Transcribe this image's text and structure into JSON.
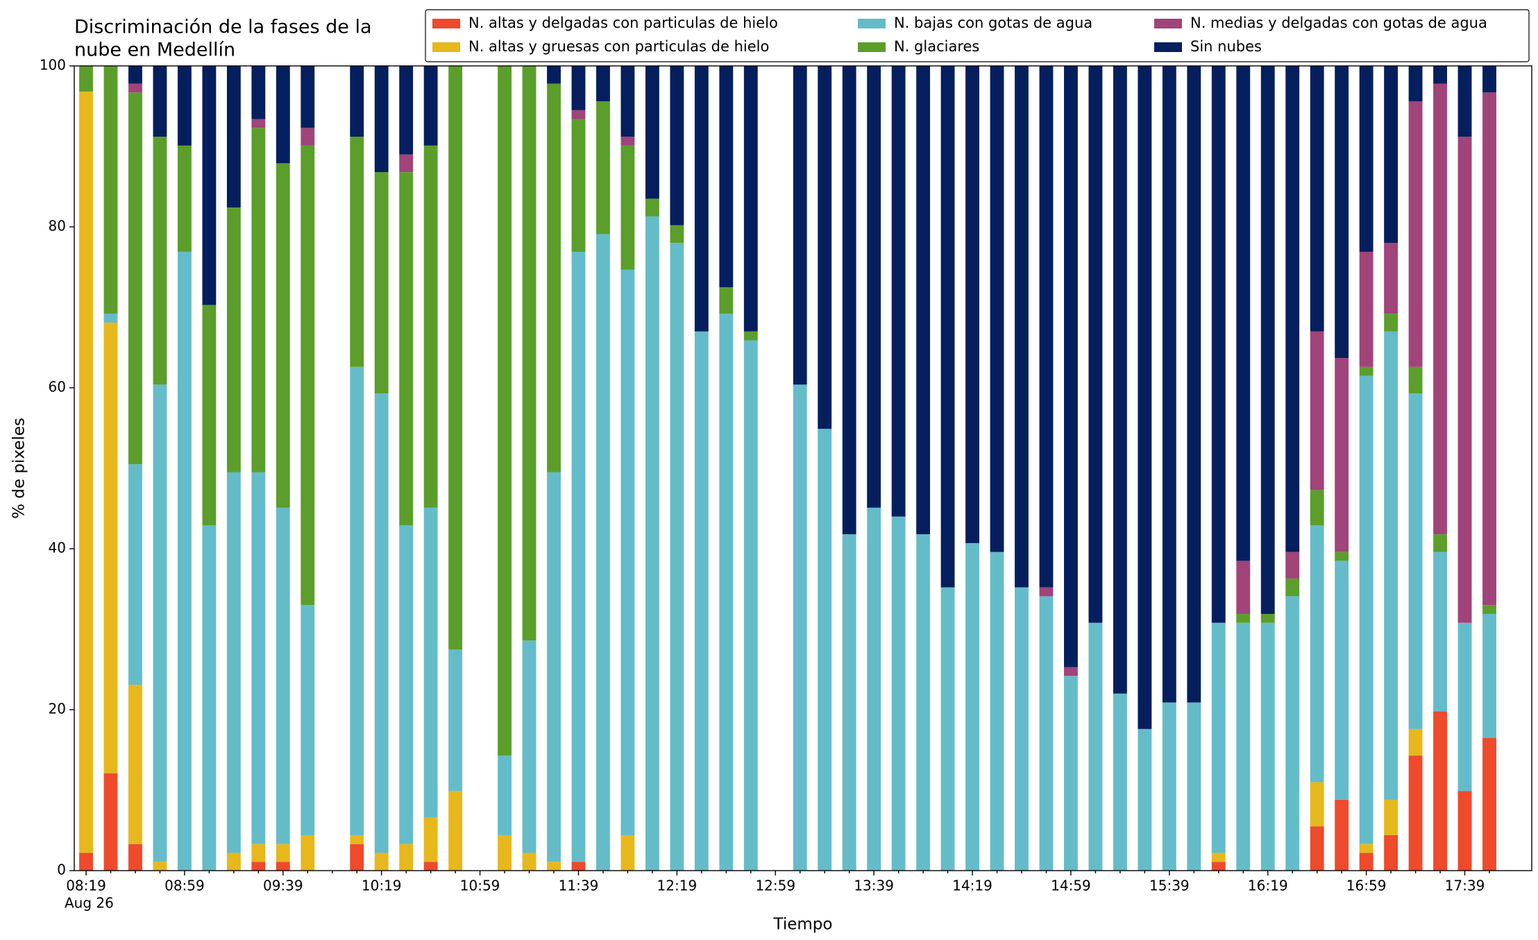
{
  "chart_data": {
    "type": "stacked_bar",
    "title": [
      "Discriminación de la fases de la",
      "nube en Medellín"
    ],
    "xlabel": "Tiempo",
    "ylabel": "% de pixeles",
    "date_label": "Aug 26",
    "categories": [
      "08:19",
      null,
      null,
      null,
      "08:59",
      null,
      null,
      null,
      "09:39",
      null,
      null,
      null,
      "10:19",
      null,
      null,
      null,
      "10:59",
      null,
      null,
      null,
      "11:39",
      null,
      null,
      null,
      "12:19",
      null,
      null,
      null,
      "12:59",
      null,
      null,
      null,
      "13:39",
      null,
      null,
      null,
      "14:19",
      null,
      null,
      null,
      "14:59",
      null,
      null,
      null,
      "15:39",
      null,
      null,
      null,
      "16:19",
      null,
      null,
      null,
      "16:59",
      null,
      null,
      null,
      "17:39",
      null
    ],
    "ylim": [
      0,
      100
    ],
    "yticks": [
      0,
      20,
      40,
      60,
      80,
      100
    ],
    "legend": "top",
    "series": [
      {
        "name": "N. altas y delgadas con particulas de hielo",
        "color": "#ee4a2b",
        "values": [
          2.2,
          12.1,
          3.3,
          0,
          0,
          0,
          0,
          1.1,
          1.1,
          0,
          null,
          3.3,
          0,
          0,
          1.1,
          0,
          null,
          0,
          0,
          0,
          1.1,
          0,
          0,
          0,
          0,
          0,
          0,
          0,
          null,
          0,
          0,
          0,
          0,
          0,
          0,
          0,
          0,
          0,
          0,
          0,
          0,
          0,
          0,
          0,
          0,
          0,
          1.1,
          0,
          0,
          0,
          5.5,
          8.8,
          2.2,
          4.4,
          14.3,
          19.8,
          9.9,
          16.5
        ]
      },
      {
        "name": "N. altas y gruesas con particulas de hielo",
        "color": "#e6b81c",
        "values": [
          94.6,
          56,
          19.8,
          1.1,
          0,
          0,
          2.2,
          2.2,
          2.2,
          4.4,
          null,
          1.1,
          2.2,
          3.3,
          5.5,
          9.9,
          null,
          4.4,
          2.2,
          1.1,
          0,
          0,
          4.4,
          0,
          0,
          0,
          0,
          0,
          null,
          0,
          0,
          0,
          0,
          0,
          0,
          0,
          0,
          0,
          0,
          0,
          0,
          0,
          0,
          0,
          0,
          0,
          1.1,
          0,
          0,
          0,
          5.5,
          0,
          1.1,
          4.4,
          3.3,
          0,
          0,
          0
        ]
      },
      {
        "name": "N. bajas con gotas de agua",
        "color": "#65bcc9",
        "values": [
          0,
          1.1,
          27.4,
          59.3,
          76.9,
          42.9,
          47.3,
          46.2,
          41.8,
          28.6,
          null,
          58.2,
          57.1,
          39.6,
          38.5,
          17.6,
          null,
          9.9,
          26.4,
          48.4,
          75.8,
          79.1,
          70.3,
          81.3,
          78,
          67,
          69.2,
          65.9,
          null,
          60.4,
          54.9,
          41.8,
          45.1,
          44,
          41.8,
          35.2,
          40.7,
          39.6,
          35.2,
          34.1,
          24.2,
          30.8,
          22,
          17.6,
          20.9,
          20.9,
          28.6,
          30.8,
          30.8,
          34.1,
          31.9,
          29.7,
          58.2,
          58.2,
          41.7,
          19.8,
          20.9,
          15.4
        ]
      },
      {
        "name": "N. glaciares",
        "color": "#5b9e2b",
        "values": [
          3.2,
          30.8,
          46.2,
          30.8,
          13.2,
          27.4,
          32.9,
          42.8,
          42.8,
          57.1,
          null,
          28.6,
          27.5,
          43.9,
          45,
          72.5,
          null,
          85.7,
          71.4,
          48.3,
          16.5,
          16.5,
          15.4,
          2.2,
          2.2,
          0,
          3.3,
          1.1,
          null,
          0,
          0,
          0,
          0,
          0,
          0,
          0,
          0,
          0,
          0,
          0,
          0,
          0,
          0,
          0,
          0,
          0,
          0,
          1.1,
          1.1,
          2.2,
          4.4,
          1.1,
          1.1,
          2.2,
          3.3,
          2.2,
          0,
          1.1
        ]
      },
      {
        "name": "N. medias y delgadas con gotas de agua",
        "color": "#a0447a",
        "values": [
          0,
          0,
          1.1,
          0,
          0,
          0,
          0,
          1.1,
          0,
          2.2,
          null,
          0,
          0,
          2.2,
          0,
          0,
          null,
          0,
          0,
          0,
          1.1,
          0,
          1.1,
          0,
          0,
          0,
          0,
          0,
          null,
          0,
          0,
          0,
          0,
          0,
          0,
          0,
          0,
          0,
          0,
          1.1,
          1.1,
          0,
          0,
          0,
          0,
          0,
          0,
          6.6,
          0,
          3.3,
          19.7,
          24.1,
          14.3,
          8.8,
          33,
          56,
          60.4,
          63.7
        ]
      },
      {
        "name": "Sin nubes",
        "color": "#051f5e",
        "values": [
          0,
          0,
          2.2,
          8.8,
          9.9,
          29.7,
          17.6,
          6.6,
          12.1,
          7.7,
          null,
          8.8,
          13.2,
          11,
          9.9,
          0,
          null,
          0,
          0,
          2.2,
          5.5,
          4.4,
          8.8,
          16.5,
          19.8,
          33,
          27.5,
          33,
          null,
          39.6,
          45.1,
          58.2,
          54.9,
          56,
          58.2,
          64.8,
          59.3,
          60.4,
          64.8,
          64.8,
          74.7,
          69.2,
          78,
          82.4,
          79.1,
          79.1,
          69.2,
          61.5,
          68.1,
          60.4,
          33,
          36.3,
          23.1,
          22,
          4.4,
          2.2,
          8.8,
          3.3
        ]
      }
    ]
  }
}
